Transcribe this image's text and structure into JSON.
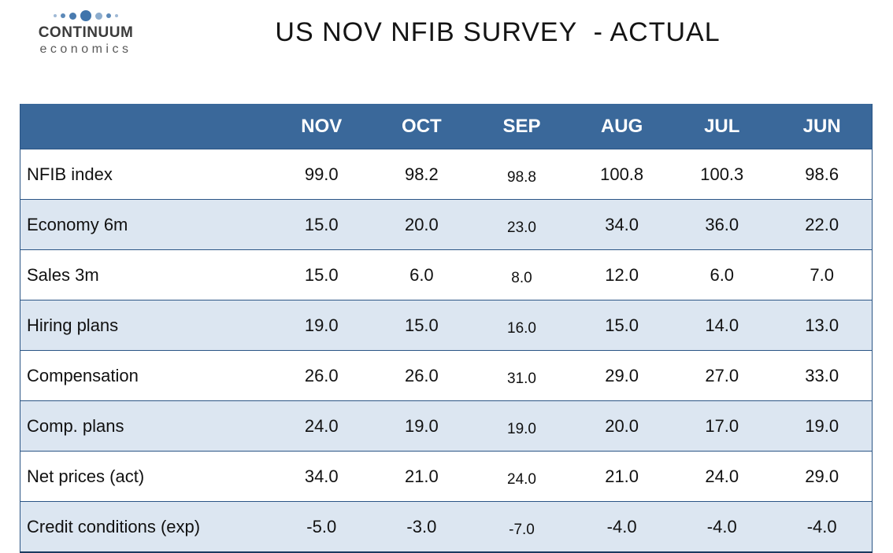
{
  "logo": {
    "name": "CONTINUUM",
    "subtitle": "economics",
    "dot_color": "#3f74ab"
  },
  "title": "US NOV NFIB SURVEY  - ACTUAL",
  "colors": {
    "header_bg": "#3a689a",
    "header_text": "#ffffff",
    "stripe_bg": "#dce6f1",
    "divider": "#2b5585",
    "body_text": "#111111"
  },
  "chart_data": {
    "type": "table",
    "title": "US NOV NFIB SURVEY  - ACTUAL",
    "columns": [
      "NOV",
      "OCT",
      "SEP",
      "AUG",
      "JUL",
      "JUN"
    ],
    "rows": [
      {
        "label": "NFIB index",
        "values": [
          "99.0",
          "98.2",
          "98.8",
          "100.8",
          "100.3",
          "98.6"
        ]
      },
      {
        "label": "Economy 6m",
        "values": [
          "15.0",
          "20.0",
          "23.0",
          "34.0",
          "36.0",
          "22.0"
        ]
      },
      {
        "label": "Sales 3m",
        "values": [
          "15.0",
          "6.0",
          "8.0",
          "12.0",
          "6.0",
          "7.0"
        ]
      },
      {
        "label": "Hiring plans",
        "values": [
          "19.0",
          "15.0",
          "16.0",
          "15.0",
          "14.0",
          "13.0"
        ]
      },
      {
        "label": "Compensation",
        "values": [
          "26.0",
          "26.0",
          "31.0",
          "29.0",
          "27.0",
          "33.0"
        ]
      },
      {
        "label": "Comp. plans",
        "values": [
          "24.0",
          "19.0",
          "19.0",
          "20.0",
          "17.0",
          "19.0"
        ]
      },
      {
        "label": "Net prices (act)",
        "values": [
          "34.0",
          "21.0",
          "24.0",
          "21.0",
          "24.0",
          "29.0"
        ]
      },
      {
        "label": "Credit conditions (exp)",
        "values": [
          "-5.0",
          "-3.0",
          "-7.0",
          "-4.0",
          "-4.0",
          "-4.0"
        ]
      }
    ]
  }
}
